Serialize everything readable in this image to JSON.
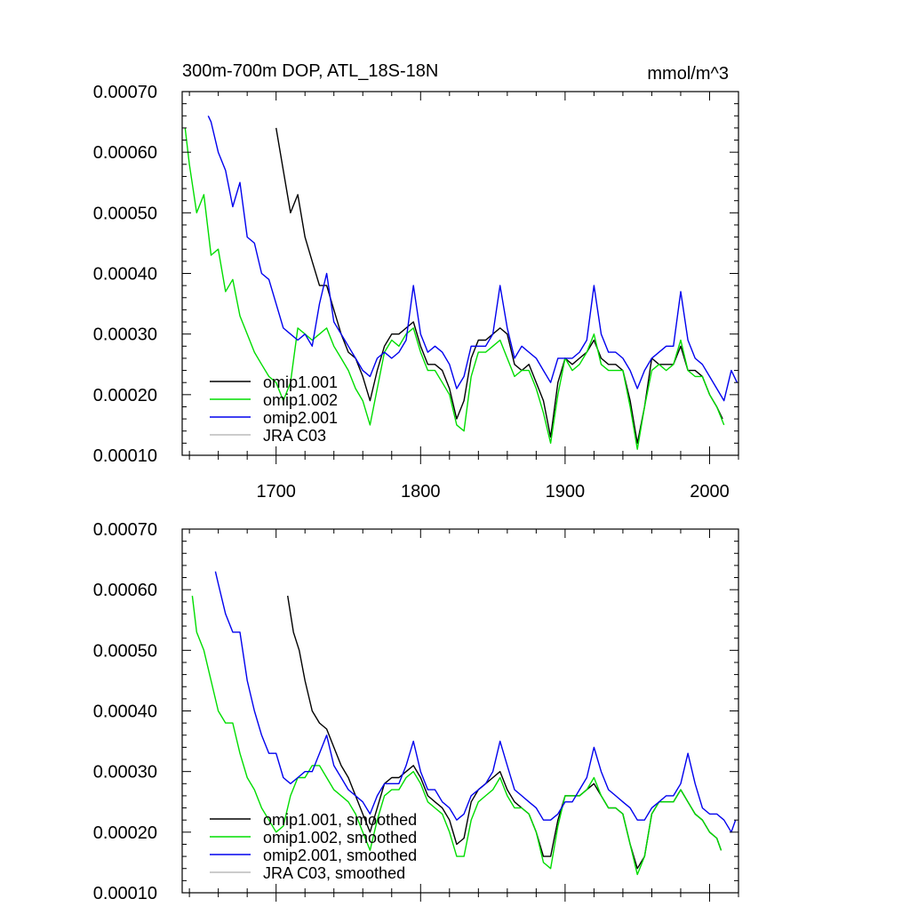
{
  "chart_data": [
    {
      "type": "line",
      "title": "300m-700m DOP, ATL_18S-18N",
      "units": "mmol/m^3",
      "xlabel": "",
      "ylabel": "",
      "xlim": [
        1635,
        2020
      ],
      "ylim": [
        0.0001,
        0.0007
      ],
      "x_ticks": [
        1700,
        1800,
        1900,
        2000
      ],
      "x_tick_labels": [
        "1700",
        "1800",
        "1900",
        "2000"
      ],
      "y_ticks": [
        0.0001,
        0.0002,
        0.0003,
        0.0004,
        0.0005,
        0.0006,
        0.0007
      ],
      "y_tick_labels": [
        "0.00010",
        "0.00020",
        "0.00030",
        "0.00040",
        "0.00050",
        "0.00060",
        "0.00070"
      ],
      "legend_position": "bottom-left",
      "series": [
        {
          "name": "omip1.001",
          "color": "#000000",
          "x": [
            1700,
            1705,
            1710,
            1715,
            1720,
            1725,
            1730,
            1735,
            1740,
            1745,
            1750,
            1755,
            1760,
            1765,
            1770,
            1775,
            1780,
            1785,
            1790,
            1795,
            1800,
            1805,
            1810,
            1815,
            1820,
            1825,
            1830,
            1835,
            1840,
            1845,
            1850,
            1855,
            1860,
            1865,
            1870,
            1875,
            1880,
            1885,
            1890,
            1895,
            1900,
            1905,
            1910,
            1915,
            1920,
            1925,
            1930,
            1935,
            1940,
            1945,
            1950,
            1955,
            1960,
            1965,
            1970,
            1975,
            1980,
            1985,
            1990,
            1995,
            2000,
            2005,
            2009
          ],
          "y": [
            0.00064,
            0.00057,
            0.0005,
            0.00053,
            0.00046,
            0.00042,
            0.00038,
            0.00038,
            0.00034,
            0.0003,
            0.00027,
            0.00026,
            0.00023,
            0.00019,
            0.00024,
            0.00028,
            0.0003,
            0.0003,
            0.00031,
            0.00032,
            0.00028,
            0.00025,
            0.00025,
            0.00024,
            0.00021,
            0.00016,
            0.00019,
            0.00026,
            0.00029,
            0.00029,
            0.0003,
            0.00031,
            0.0003,
            0.00025,
            0.00024,
            0.00025,
            0.00022,
            0.00019,
            0.00013,
            0.00022,
            0.00026,
            0.00025,
            0.00026,
            0.00027,
            0.00029,
            0.00026,
            0.00025,
            0.00025,
            0.00024,
            0.00019,
            0.00012,
            0.00018,
            0.00026,
            0.00025,
            0.00025,
            0.00025,
            0.00028,
            0.00024,
            0.00024,
            0.00023,
            0.0002,
            0.00018,
            0.00016
          ]
        },
        {
          "name": "omip1.002",
          "color": "#00dd00",
          "x": [
            1637,
            1640,
            1645,
            1650,
            1655,
            1660,
            1665,
            1670,
            1675,
            1680,
            1685,
            1690,
            1695,
            1700,
            1705,
            1710,
            1715,
            1720,
            1725,
            1730,
            1735,
            1740,
            1745,
            1750,
            1755,
            1760,
            1765,
            1770,
            1775,
            1780,
            1785,
            1790,
            1795,
            1800,
            1805,
            1810,
            1815,
            1820,
            1825,
            1830,
            1835,
            1840,
            1845,
            1850,
            1855,
            1860,
            1865,
            1870,
            1875,
            1880,
            1885,
            1890,
            1895,
            1900,
            1905,
            1910,
            1915,
            1920,
            1925,
            1930,
            1935,
            1940,
            1945,
            1950,
            1955,
            1960,
            1965,
            1970,
            1975,
            1980,
            1985,
            1990,
            1995,
            2000,
            2005,
            2010
          ],
          "y": [
            0.00064,
            0.00058,
            0.0005,
            0.00053,
            0.00043,
            0.00044,
            0.00037,
            0.00039,
            0.00033,
            0.0003,
            0.00027,
            0.00025,
            0.00023,
            0.00022,
            0.00019,
            0.00022,
            0.00031,
            0.0003,
            0.00029,
            0.0003,
            0.00031,
            0.00028,
            0.00026,
            0.00024,
            0.00021,
            0.00019,
            0.00015,
            0.00021,
            0.00027,
            0.00029,
            0.00028,
            0.0003,
            0.00031,
            0.00027,
            0.00024,
            0.00024,
            0.00022,
            0.0002,
            0.00015,
            0.00014,
            0.00023,
            0.00027,
            0.00027,
            0.00028,
            0.00029,
            0.00026,
            0.00023,
            0.00024,
            0.00024,
            0.00021,
            0.00017,
            0.00012,
            0.0002,
            0.00026,
            0.00024,
            0.00025,
            0.00027,
            0.0003,
            0.00025,
            0.00024,
            0.00024,
            0.00024,
            0.00018,
            0.00011,
            0.00018,
            0.00024,
            0.00025,
            0.00024,
            0.00025,
            0.00029,
            0.00024,
            0.00023,
            0.00023,
            0.0002,
            0.00018,
            0.00015
          ]
        },
        {
          "name": "omip2.001",
          "color": "#0000ee",
          "x": [
            1653,
            1655,
            1660,
            1665,
            1670,
            1675,
            1680,
            1685,
            1690,
            1695,
            1700,
            1705,
            1710,
            1715,
            1720,
            1725,
            1730,
            1735,
            1740,
            1745,
            1750,
            1755,
            1760,
            1765,
            1770,
            1775,
            1780,
            1785,
            1790,
            1795,
            1800,
            1805,
            1810,
            1815,
            1820,
            1825,
            1830,
            1835,
            1840,
            1845,
            1850,
            1855,
            1860,
            1865,
            1870,
            1875,
            1880,
            1885,
            1890,
            1895,
            1900,
            1905,
            1910,
            1915,
            1920,
            1925,
            1930,
            1935,
            1940,
            1945,
            1950,
            1955,
            1960,
            1965,
            1970,
            1975,
            1980,
            1985,
            1990,
            1995,
            2000,
            2005,
            2010,
            2015,
            2019
          ],
          "y": [
            0.00066,
            0.00065,
            0.0006,
            0.00057,
            0.00051,
            0.00055,
            0.00046,
            0.00045,
            0.0004,
            0.00039,
            0.00035,
            0.00031,
            0.0003,
            0.00029,
            0.0003,
            0.00028,
            0.00035,
            0.0004,
            0.00032,
            0.0003,
            0.00028,
            0.00026,
            0.00024,
            0.00023,
            0.00026,
            0.00027,
            0.00026,
            0.00027,
            0.00029,
            0.00038,
            0.0003,
            0.00027,
            0.00028,
            0.00027,
            0.00025,
            0.00021,
            0.00023,
            0.00028,
            0.00028,
            0.00028,
            0.0003,
            0.00038,
            0.00031,
            0.00026,
            0.00028,
            0.00027,
            0.00026,
            0.00024,
            0.00022,
            0.00026,
            0.00026,
            0.00026,
            0.00027,
            0.00029,
            0.00038,
            0.0003,
            0.00027,
            0.00027,
            0.00026,
            0.00024,
            0.00021,
            0.00024,
            0.00026,
            0.00027,
            0.00028,
            0.00028,
            0.00037,
            0.00029,
            0.00026,
            0.00025,
            0.00023,
            0.00021,
            0.00019,
            0.00024,
            0.00022
          ]
        },
        {
          "name": "JRA C03",
          "color": "#bbbbbb",
          "x": [],
          "y": []
        }
      ]
    },
    {
      "type": "line",
      "title": "",
      "xlabel": "",
      "ylabel": "",
      "xlim": [
        1635,
        2020
      ],
      "ylim": [
        0.0001,
        0.0007
      ],
      "x_ticks": [
        1700,
        1800,
        1900,
        2000
      ],
      "x_tick_labels": [],
      "y_ticks": [
        0.0001,
        0.0002,
        0.0003,
        0.0004,
        0.0005,
        0.0006,
        0.0007
      ],
      "y_tick_labels": [
        "0.00010",
        "0.00020",
        "0.00030",
        "0.00040",
        "0.00050",
        "0.00060",
        "0.00070"
      ],
      "legend_position": "bottom-left",
      "series": [
        {
          "name": "omip1.001, smoothed",
          "color": "#000000",
          "x": [
            1708,
            1712,
            1716,
            1720,
            1725,
            1730,
            1735,
            1740,
            1745,
            1750,
            1755,
            1760,
            1765,
            1770,
            1775,
            1780,
            1785,
            1790,
            1795,
            1800,
            1805,
            1810,
            1815,
            1820,
            1825,
            1830,
            1835,
            1840,
            1845,
            1850,
            1855,
            1860,
            1865,
            1870,
            1875,
            1880,
            1885,
            1890,
            1895,
            1900,
            1905,
            1910,
            1915,
            1920,
            1925,
            1930,
            1935,
            1940,
            1945,
            1950,
            1955,
            1960,
            1965,
            1970,
            1975,
            1980,
            1985,
            1990,
            1995,
            2000,
            2005,
            2008
          ],
          "y": [
            0.00059,
            0.00053,
            0.0005,
            0.00045,
            0.0004,
            0.00038,
            0.00037,
            0.00034,
            0.00031,
            0.00029,
            0.00026,
            0.00023,
            0.0002,
            0.00024,
            0.00028,
            0.00029,
            0.00029,
            0.0003,
            0.00031,
            0.00029,
            0.00026,
            0.00025,
            0.00024,
            0.00022,
            0.00018,
            0.00019,
            0.00025,
            0.00027,
            0.00028,
            0.00029,
            0.0003,
            0.00027,
            0.00025,
            0.00024,
            0.00023,
            0.0002,
            0.00016,
            0.00016,
            0.00022,
            0.00026,
            0.00026,
            0.00026,
            0.00027,
            0.00028,
            0.00026,
            0.00024,
            0.00024,
            0.00023,
            0.00018,
            0.00014,
            0.00016,
            0.00023,
            0.00025,
            0.00025,
            0.00025,
            0.00027,
            0.00025,
            0.00023,
            0.00022,
            0.0002,
            0.00019,
            0.00017
          ]
        },
        {
          "name": "omip1.002, smoothed",
          "color": "#00dd00",
          "x": [
            1642,
            1645,
            1650,
            1655,
            1660,
            1665,
            1670,
            1675,
            1680,
            1685,
            1690,
            1695,
            1700,
            1705,
            1710,
            1715,
            1720,
            1725,
            1730,
            1735,
            1740,
            1745,
            1750,
            1755,
            1760,
            1765,
            1770,
            1775,
            1780,
            1785,
            1790,
            1795,
            1800,
            1805,
            1810,
            1815,
            1820,
            1825,
            1830,
            1835,
            1840,
            1845,
            1850,
            1855,
            1860,
            1865,
            1870,
            1875,
            1880,
            1885,
            1890,
            1895,
            1900,
            1905,
            1910,
            1915,
            1920,
            1925,
            1930,
            1935,
            1940,
            1945,
            1950,
            1955,
            1960,
            1965,
            1970,
            1975,
            1980,
            1985,
            1990,
            1995,
            2000,
            2005,
            2008
          ],
          "y": [
            0.00059,
            0.00053,
            0.0005,
            0.00045,
            0.0004,
            0.00038,
            0.00038,
            0.00033,
            0.00029,
            0.00027,
            0.00024,
            0.00022,
            0.0002,
            0.00021,
            0.00026,
            0.00029,
            0.00029,
            0.00031,
            0.00031,
            0.00029,
            0.00027,
            0.00026,
            0.00025,
            0.00023,
            0.0002,
            0.00017,
            0.00022,
            0.00026,
            0.00027,
            0.00027,
            0.00029,
            0.0003,
            0.00028,
            0.00025,
            0.00024,
            0.00023,
            0.0002,
            0.00016,
            0.00016,
            0.00022,
            0.00025,
            0.00026,
            0.00027,
            0.00029,
            0.00026,
            0.00024,
            0.00024,
            0.00023,
            0.0002,
            0.00015,
            0.00014,
            0.00021,
            0.00026,
            0.00026,
            0.00026,
            0.00027,
            0.00029,
            0.00026,
            0.00024,
            0.00024,
            0.00023,
            0.00018,
            0.00013,
            0.00016,
            0.00023,
            0.00025,
            0.00025,
            0.00025,
            0.00027,
            0.00025,
            0.00023,
            0.00022,
            0.0002,
            0.00019,
            0.00017
          ]
        },
        {
          "name": "omip2.001, smoothed",
          "color": "#0000ee",
          "x": [
            1658,
            1660,
            1665,
            1670,
            1675,
            1680,
            1685,
            1690,
            1695,
            1700,
            1705,
            1710,
            1715,
            1720,
            1725,
            1730,
            1735,
            1740,
            1745,
            1750,
            1755,
            1760,
            1765,
            1770,
            1775,
            1780,
            1785,
            1790,
            1795,
            1800,
            1805,
            1810,
            1815,
            1820,
            1825,
            1830,
            1835,
            1840,
            1845,
            1850,
            1855,
            1860,
            1865,
            1870,
            1875,
            1880,
            1885,
            1890,
            1895,
            1900,
            1905,
            1910,
            1915,
            1920,
            1925,
            1930,
            1935,
            1940,
            1945,
            1950,
            1955,
            1960,
            1965,
            1970,
            1975,
            1980,
            1985,
            1990,
            1995,
            2000,
            2005,
            2010,
            2015,
            2018
          ],
          "y": [
            0.00063,
            0.00061,
            0.00056,
            0.00053,
            0.00053,
            0.00045,
            0.0004,
            0.00036,
            0.00033,
            0.00033,
            0.00029,
            0.00028,
            0.00029,
            0.0003,
            0.0003,
            0.00033,
            0.00036,
            0.00031,
            0.00029,
            0.00027,
            0.00026,
            0.00025,
            0.00023,
            0.00026,
            0.00028,
            0.00028,
            0.00028,
            0.00031,
            0.00035,
            0.0003,
            0.00027,
            0.00027,
            0.00025,
            0.00024,
            0.00022,
            0.00023,
            0.00026,
            0.00027,
            0.00028,
            0.0003,
            0.00035,
            0.00031,
            0.00027,
            0.00026,
            0.00025,
            0.00024,
            0.00022,
            0.00022,
            0.00023,
            0.00025,
            0.00025,
            0.00027,
            0.00029,
            0.00034,
            0.0003,
            0.00027,
            0.00026,
            0.00025,
            0.00024,
            0.00022,
            0.00022,
            0.00024,
            0.00025,
            0.00026,
            0.00026,
            0.00028,
            0.00033,
            0.00028,
            0.00024,
            0.00023,
            0.00023,
            0.00022,
            0.0002,
            0.00022
          ]
        },
        {
          "name": "JRA C03, smoothed",
          "color": "#bbbbbb",
          "x": [],
          "y": []
        }
      ]
    }
  ]
}
